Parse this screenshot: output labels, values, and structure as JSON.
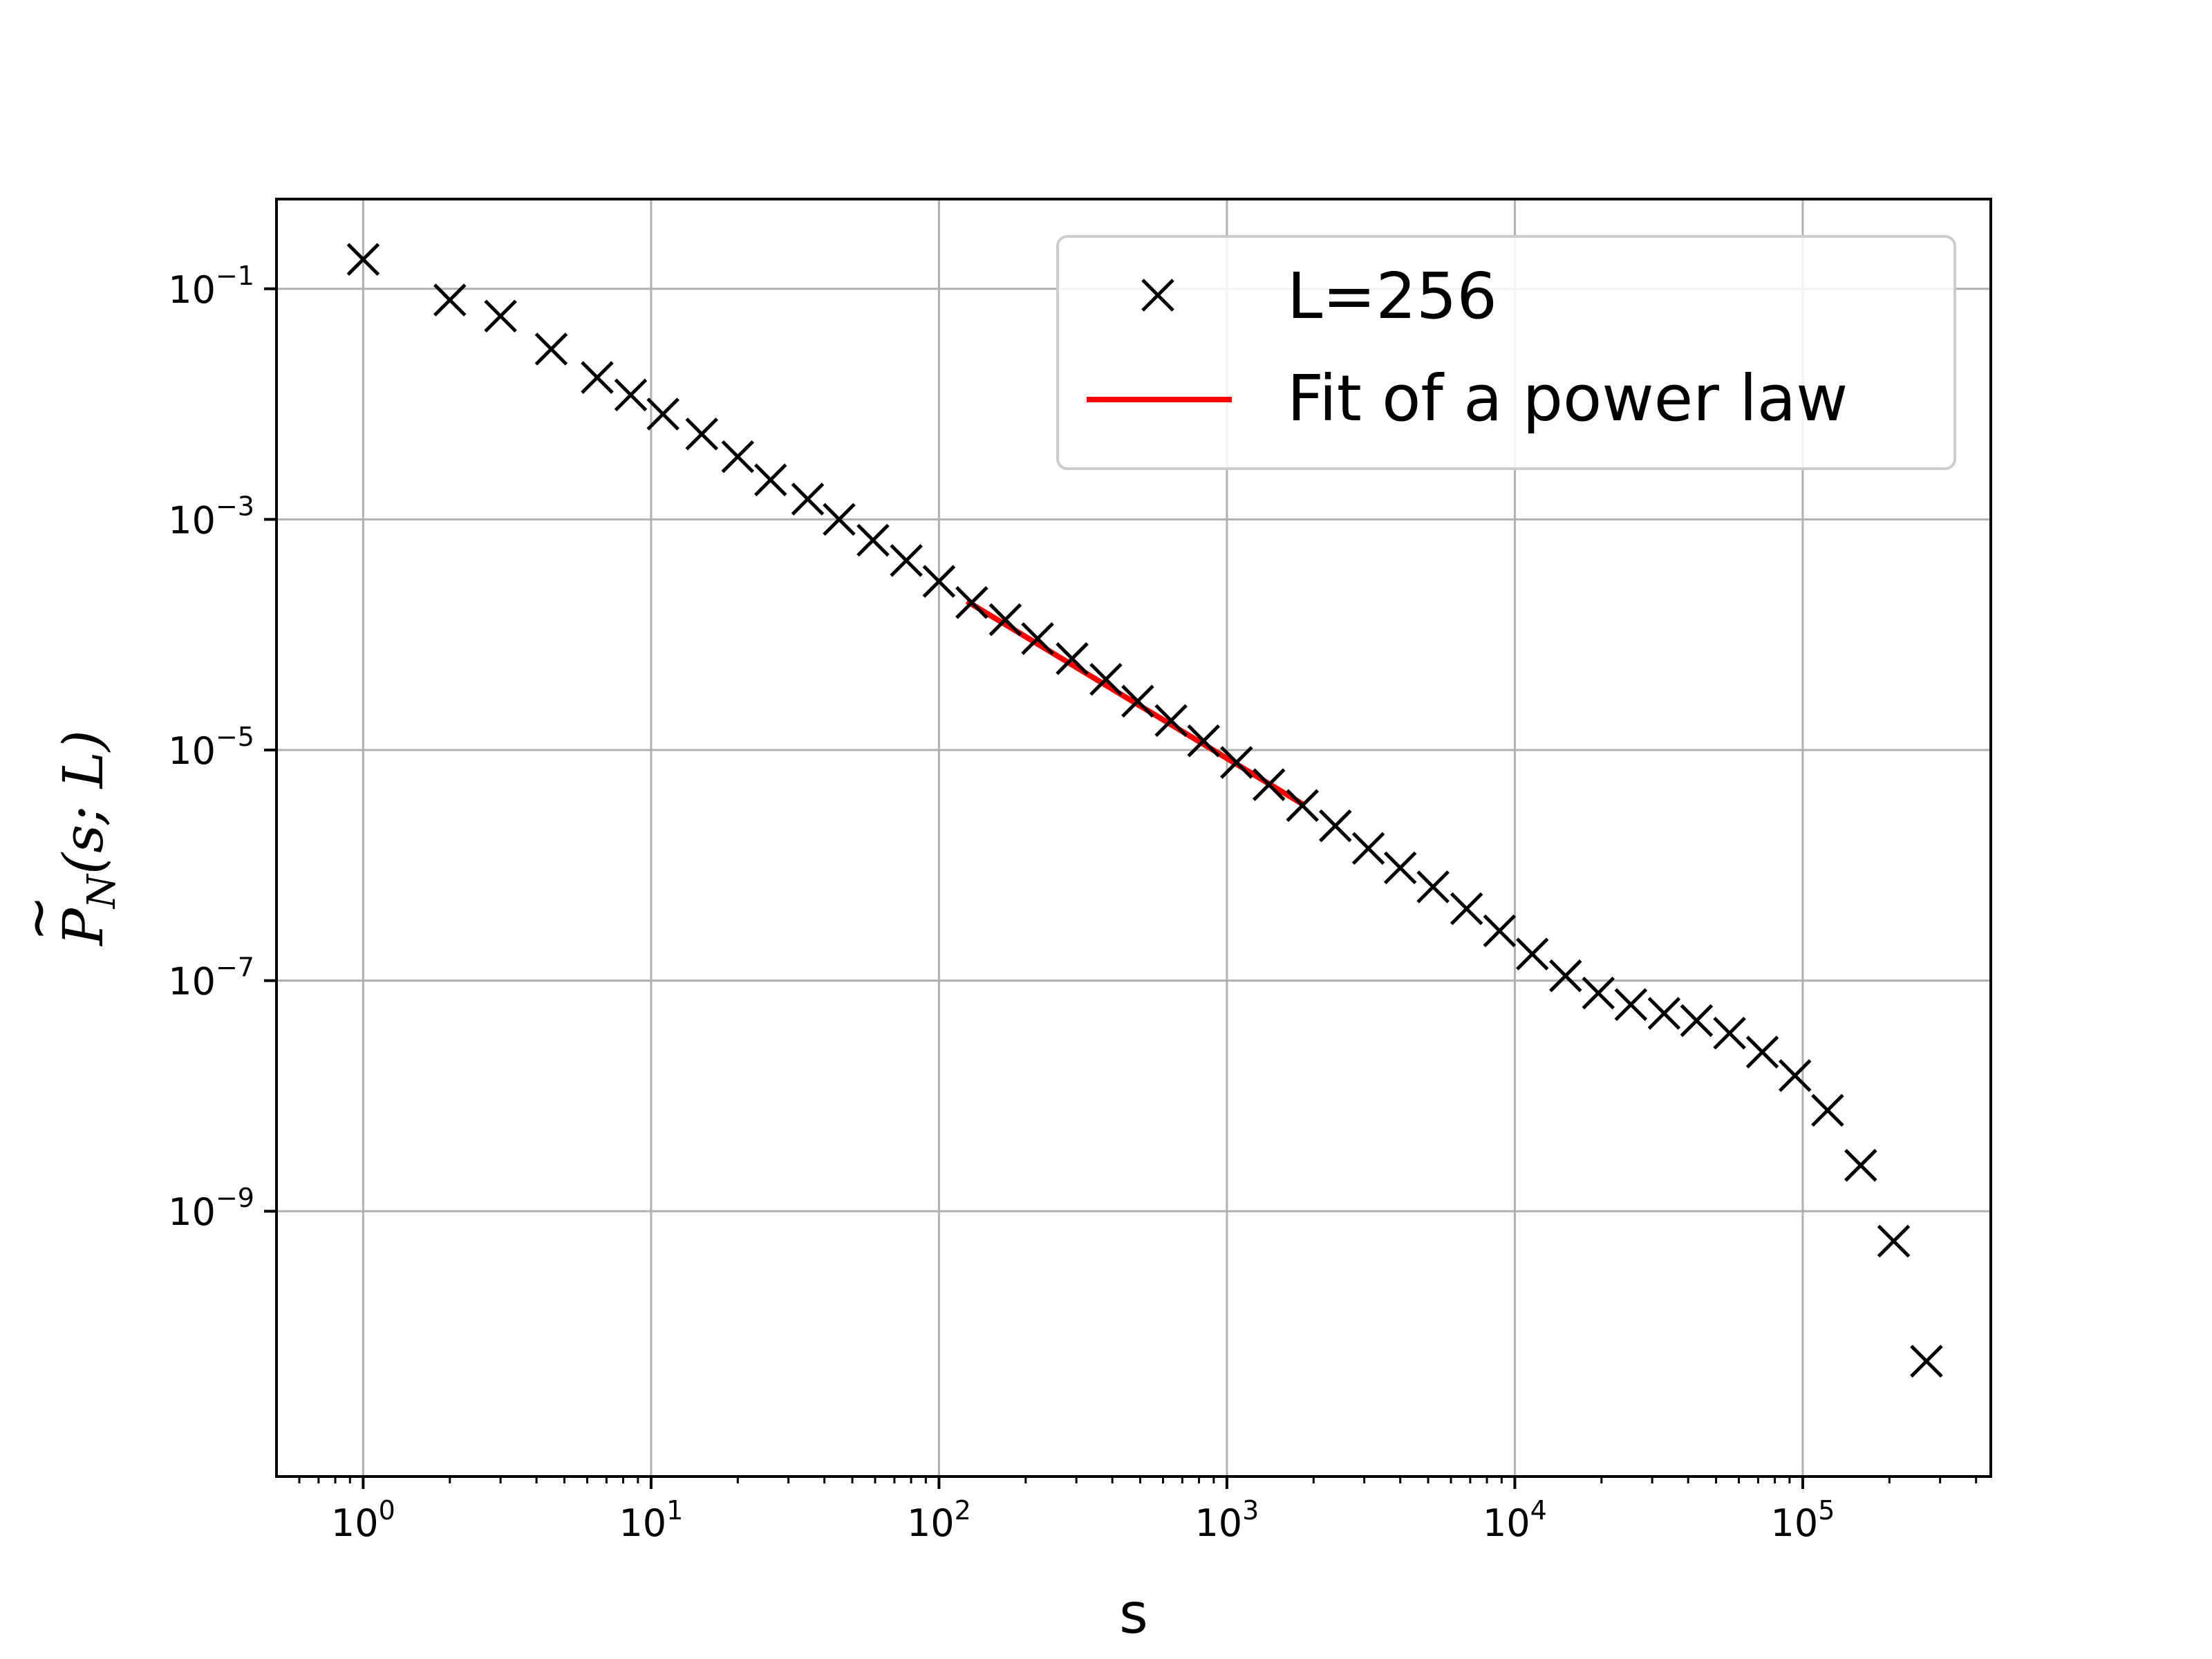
{
  "chart_data": {
    "type": "scatter",
    "x_scale": "log",
    "y_scale": "log",
    "xlim": [
      0.5,
      450000
    ],
    "ylim": [
      5e-12,
      0.6
    ],
    "grid": true,
    "xlabel": "s",
    "ylabel": {
      "base": "P",
      "accent": "~",
      "subscript": "N",
      "args": "(s; L)"
    },
    "x_ticks": [
      {
        "base": "10",
        "exp": "0",
        "value": 1
      },
      {
        "base": "10",
        "exp": "1",
        "value": 10
      },
      {
        "base": "10",
        "exp": "2",
        "value": 100
      },
      {
        "base": "10",
        "exp": "3",
        "value": 1000
      },
      {
        "base": "10",
        "exp": "4",
        "value": 10000
      },
      {
        "base": "10",
        "exp": "5",
        "value": 100000
      }
    ],
    "y_ticks": [
      {
        "base": "10",
        "exp": "−1",
        "value": 0.1
      },
      {
        "base": "10",
        "exp": "−3",
        "value": 0.001
      },
      {
        "base": "10",
        "exp": "−5",
        "value": 1e-05
      },
      {
        "base": "10",
        "exp": "−7",
        "value": 1e-07
      },
      {
        "base": "10",
        "exp": "−9",
        "value": 1e-09
      }
    ],
    "legend_position": "top-right",
    "series": [
      {
        "name": "L=256",
        "style": "marker-x",
        "color": "#000000",
        "x": [
          1,
          2,
          3,
          4.5,
          6.5,
          8.5,
          11,
          15,
          20,
          26,
          35,
          45,
          59,
          77,
          100,
          130,
          170,
          220,
          290,
          380,
          490,
          640,
          830,
          1080,
          1400,
          1830,
          2380,
          3100,
          4000,
          5200,
          6800,
          8850,
          11500,
          15000,
          19500,
          25300,
          33000,
          42800,
          55700,
          72400,
          94000,
          122000,
          159000,
          207000,
          269000
        ],
        "y": [
          0.18,
          0.08,
          0.058,
          0.03,
          0.017,
          0.012,
          0.0082,
          0.0055,
          0.0035,
          0.0022,
          0.0015,
          0.001,
          0.00066,
          0.00044,
          0.00029,
          0.00019,
          0.000135,
          9.25e-05,
          6.2e-05,
          4.1e-05,
          2.65e-05,
          1.8e-05,
          1.2e-05,
          7.8e-06,
          5e-06,
          3.3e-06,
          2.2e-06,
          1.4e-06,
          9.5e-07,
          6.5e-07,
          4.2e-07,
          2.7e-07,
          1.7e-07,
          1.1e-07,
          7.8e-08,
          6.2e-08,
          5.2e-08,
          4.5e-08,
          3.5e-08,
          2.4e-08,
          1.5e-08,
          7.5e-09,
          2.5e-09,
          5.5e-10,
          5e-11
        ]
      },
      {
        "name": "Fit of a power law",
        "style": "line",
        "color": "#ff0000",
        "x": [
          125,
          1830
        ],
        "y": [
          0.000195,
          3.4e-06
        ]
      }
    ]
  }
}
